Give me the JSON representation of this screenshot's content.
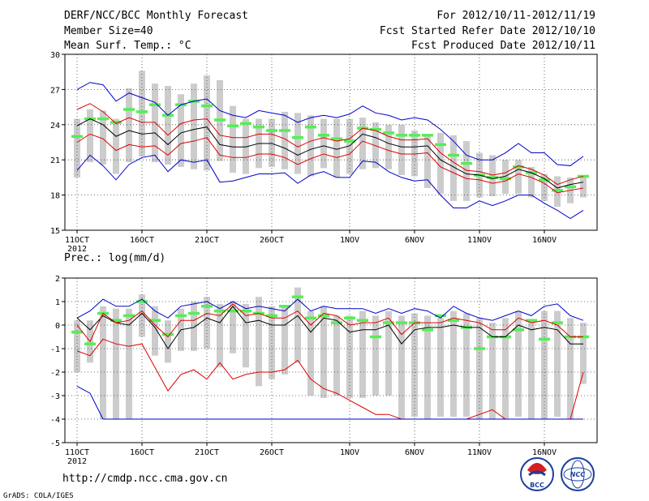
{
  "header": {
    "title": "DERF/NCC/BCC Monthly Forecast",
    "member_size": "Member Size=40",
    "variable1": "Mean Surf. Temp.: °C",
    "for_range": "For 2012/10/11-2012/11/19",
    "started": "Fcst Started Refer Date 2012/10/10",
    "produced": "Fcst Produced Date 2012/10/11"
  },
  "footer": {
    "url": "http://cmdp.ncc.cma.gov.cn",
    "grads": "GrADS: COLA/IGES",
    "logo1_text": "BCC",
    "logo2_text": "NCC"
  },
  "colors": {
    "mean": "#000000",
    "spread": "#dd0000",
    "envelope": "#0000cc",
    "member": "#55ee55",
    "box": "#cccccc"
  },
  "chart_data": [
    {
      "type": "line",
      "title": "Mean Surf. Temp.: °C",
      "ylim": [
        15,
        30
      ],
      "yticks": [
        "15",
        "18",
        "21",
        "24",
        "27",
        "30"
      ],
      "xlabels": [
        "11OCT",
        "16OCT",
        "21OCT",
        "26OCT",
        "1NOV",
        "6NOV",
        "11NOV",
        "16NOV"
      ],
      "year_label": "2012",
      "days": 40,
      "series": [
        {
          "name": "ensemble mean",
          "color": "#000000",
          "values": [
            23.9,
            24.5,
            24.0,
            23.0,
            23.5,
            23.2,
            23.3,
            22.3,
            23.3,
            23.6,
            23.8,
            22.3,
            22.1,
            22.1,
            22.4,
            22.4,
            22.0,
            21.4,
            21.9,
            22.2,
            21.9,
            22.2,
            23.2,
            22.9,
            22.4,
            22.1,
            22.1,
            22.2,
            21.0,
            20.4,
            19.8,
            19.7,
            19.4,
            19.6,
            20.2,
            19.9,
            19.4,
            18.6,
            18.9,
            19.1
          ]
        },
        {
          "name": "mean + spread",
          "color": "#dd0000",
          "values": [
            25.3,
            25.8,
            25.1,
            24.1,
            24.6,
            24.2,
            24.2,
            23.1,
            24.1,
            24.4,
            24.5,
            23.1,
            22.9,
            22.9,
            23.2,
            23.2,
            22.8,
            22.1,
            22.6,
            22.9,
            22.6,
            22.8,
            23.7,
            23.5,
            23.0,
            22.7,
            22.7,
            22.8,
            21.6,
            20.8,
            20.1,
            20.0,
            19.7,
            19.9,
            20.5,
            20.2,
            19.7,
            18.9,
            19.3,
            19.6
          ]
        },
        {
          "name": "mean - spread",
          "color": "#dd0000",
          "values": [
            22.5,
            23.2,
            22.8,
            21.8,
            22.3,
            22.1,
            22.2,
            21.4,
            22.4,
            22.6,
            22.9,
            21.4,
            21.2,
            21.2,
            21.5,
            21.5,
            21.2,
            20.6,
            21.1,
            21.5,
            21.2,
            21.5,
            22.6,
            22.2,
            21.8,
            21.5,
            21.5,
            21.6,
            20.4,
            19.9,
            19.4,
            19.3,
            19.0,
            19.2,
            19.8,
            19.5,
            19.0,
            18.2,
            18.4,
            18.6
          ]
        },
        {
          "name": "max member",
          "color": "#0000cc",
          "values": [
            27.0,
            27.6,
            27.4,
            26.0,
            26.7,
            26.3,
            25.9,
            24.8,
            25.7,
            26.0,
            26.2,
            25.2,
            24.8,
            24.6,
            25.2,
            25.0,
            24.8,
            24.2,
            24.6,
            24.8,
            24.6,
            24.9,
            25.6,
            25.0,
            24.8,
            24.4,
            24.6,
            24.4,
            23.6,
            22.6,
            21.4,
            21.0,
            21.0,
            21.6,
            22.4,
            21.6,
            21.6,
            20.6,
            20.5,
            21.3
          ]
        },
        {
          "name": "min member",
          "color": "#0000cc",
          "values": [
            20.1,
            21.4,
            20.5,
            19.3,
            20.6,
            21.2,
            21.4,
            20.0,
            21.0,
            20.8,
            21.0,
            19.1,
            19.2,
            19.5,
            19.8,
            19.8,
            19.9,
            19.0,
            19.7,
            20.0,
            19.5,
            19.5,
            20.9,
            20.8,
            20.0,
            19.5,
            19.2,
            19.3,
            18.0,
            16.9,
            16.9,
            17.5,
            17.1,
            17.5,
            18.0,
            18.0,
            17.3,
            16.7,
            16.0,
            16.7
          ]
        }
      ],
      "box_top": [
        24.5,
        25.3,
        25.2,
        24.5,
        27.1,
        28.6,
        27.5,
        27.3,
        26.6,
        27.5,
        28.2,
        27.8,
        25.6,
        24.5,
        24.5,
        24.5,
        25.1,
        25.0,
        24.8,
        24.5,
        24.5,
        24.5,
        24.6,
        24.2,
        24.0,
        24.0,
        23.5,
        23.0,
        23.3,
        23.1,
        22.6,
        21.6,
        21.4,
        21.0,
        21.0,
        20.4,
        19.8,
        19.6,
        19.5,
        19.5
      ],
      "box_bottom": [
        19.5,
        20.8,
        20.6,
        19.8,
        20.8,
        21.3,
        20.8,
        20.6,
        20.4,
        20.2,
        20.1,
        20.9,
        19.9,
        19.8,
        20.3,
        20.4,
        20.2,
        19.8,
        19.6,
        20.3,
        19.5,
        19.8,
        20.2,
        20.3,
        20.2,
        19.7,
        19.6,
        18.6,
        18.1,
        17.5,
        17.5,
        17.8,
        17.9,
        18.1,
        18.1,
        17.8,
        17.5,
        17.0,
        17.3,
        17.8
      ],
      "member_marks": [
        23.0,
        24.5,
        24.5,
        24.2,
        25.3,
        25.1,
        25.7,
        24.8,
        25.7,
        26.0,
        25.6,
        24.4,
        23.9,
        24.1,
        23.8,
        23.5,
        23.5,
        22.9,
        23.8,
        23.1,
        22.8,
        22.6,
        23.7,
        23.6,
        23.3,
        23.1,
        23.1,
        23.1,
        22.3,
        21.4,
        20.7,
        19.7,
        19.5,
        19.4,
        20.4,
        19.9,
        19.3,
        18.4,
        18.7,
        19.6
      ]
    },
    {
      "type": "line",
      "title": "Prec.: log(mm/d)",
      "ylim": [
        -5,
        2
      ],
      "yticks": [
        "-5",
        "-4",
        "-3",
        "-2",
        "-1",
        "0",
        "1",
        "2"
      ],
      "xlabels": [
        "11OCT",
        "16OCT",
        "21OCT",
        "26OCT",
        "1NOV",
        "6NOV",
        "11NOV",
        "16NOV"
      ],
      "year_label": "2012",
      "days": 40,
      "series": [
        {
          "name": "ensemble mean",
          "color": "#000000",
          "values": [
            0.3,
            -0.2,
            0.4,
            0.1,
            0.0,
            0.5,
            -0.1,
            -1.0,
            -0.2,
            -0.1,
            0.3,
            0.1,
            0.8,
            0.1,
            0.2,
            0.0,
            0.0,
            0.4,
            -0.3,
            0.3,
            0.2,
            -0.3,
            -0.2,
            -0.2,
            0.0,
            -0.8,
            -0.2,
            -0.1,
            -0.1,
            0.0,
            -0.1,
            -0.1,
            -0.5,
            -0.5,
            0.0,
            -0.2,
            -0.1,
            -0.2,
            -0.8,
            -0.8
          ]
        },
        {
          "name": "mean + spread",
          "color": "#dd0000",
          "values": [
            0.0,
            -0.7,
            0.5,
            0.1,
            0.2,
            0.6,
            0.0,
            -0.5,
            0.2,
            0.2,
            0.5,
            0.4,
            0.9,
            0.4,
            0.5,
            0.3,
            0.3,
            0.6,
            0.0,
            0.5,
            0.4,
            0.0,
            0.1,
            0.1,
            0.3,
            -0.4,
            0.1,
            0.1,
            0.1,
            0.3,
            0.2,
            0.1,
            -0.2,
            -0.2,
            0.3,
            0.1,
            0.2,
            0.0,
            -0.5,
            -0.5
          ]
        },
        {
          "name": "mean - spread",
          "color": "#dd0000",
          "values": [
            -1.1,
            -1.3,
            -0.6,
            -0.8,
            -0.9,
            -0.8,
            -1.8,
            -2.8,
            -2.1,
            -1.9,
            -2.3,
            -1.6,
            -2.3,
            -2.1,
            -2.0,
            -2.0,
            -1.9,
            -1.5,
            -2.3,
            -2.7,
            -2.9,
            -3.2,
            -3.5,
            -3.8,
            -3.8,
            -4.0,
            -4.0,
            -4.0,
            -4.0,
            -4.0,
            -4.0,
            -3.8,
            -3.6,
            -4.0,
            -4.0,
            -4.0,
            -4.0,
            -4.0,
            -4.0,
            -2.0
          ]
        },
        {
          "name": "max member",
          "color": "#0000cc",
          "values": [
            0.3,
            0.6,
            1.1,
            0.8,
            0.8,
            1.1,
            0.6,
            0.3,
            0.8,
            0.9,
            1.0,
            0.7,
            1.0,
            0.7,
            0.8,
            0.7,
            0.6,
            1.1,
            0.6,
            0.8,
            0.7,
            0.7,
            0.7,
            0.5,
            0.7,
            0.5,
            0.7,
            0.6,
            0.3,
            0.8,
            0.5,
            0.3,
            0.2,
            0.4,
            0.6,
            0.4,
            0.8,
            0.9,
            0.4,
            0.2
          ]
        },
        {
          "name": "min member",
          "color": "#0000cc",
          "values": [
            -2.6,
            -2.9,
            -4.0,
            -4.0,
            -4.0,
            -4.0,
            -4.0,
            -4.0,
            -4.0,
            -4.0,
            -4.0,
            -4.0,
            -4.0,
            -4.0,
            -4.0,
            -4.0,
            -4.0,
            -4.0,
            -4.0,
            -4.0,
            -4.0,
            -4.0,
            -4.0,
            -4.0,
            -4.0,
            -4.0,
            -4.0,
            -4.0,
            -4.0,
            -4.0,
            -4.0,
            -4.0,
            -4.0,
            -4.0,
            -4.0,
            -4.0,
            -4.0,
            -4.0,
            -4.0,
            -4.0
          ]
        }
      ],
      "box_top": [
        0.2,
        0.2,
        0.8,
        0.7,
        0.7,
        1.3,
        0.8,
        0.2,
        0.7,
        1.0,
        1.2,
        0.9,
        1.0,
        0.9,
        1.2,
        0.8,
        0.8,
        1.6,
        0.6,
        0.8,
        0.4,
        0.4,
        0.6,
        0.4,
        0.6,
        0.4,
        0.5,
        0.4,
        0.3,
        0.6,
        0.5,
        0.3,
        0.1,
        0.3,
        0.6,
        0.2,
        0.6,
        0.6,
        0.3,
        0.1
      ],
      "box_bottom": [
        -2.0,
        -1.6,
        -4.0,
        -4.0,
        -4.0,
        -0.5,
        -1.3,
        -1.6,
        -1.1,
        -1.1,
        -1.0,
        -1.8,
        -1.2,
        -1.8,
        -2.6,
        -2.3,
        -2.1,
        -1.6,
        -3.0,
        -3.1,
        -3.0,
        -3.1,
        -3.1,
        -3.0,
        -3.0,
        -4.0,
        -3.9,
        -4.0,
        -3.9,
        -3.9,
        -3.9,
        -4.0,
        -4.0,
        -4.0,
        -3.9,
        -4.0,
        -4.0,
        -3.9,
        -4.0,
        -2.5
      ],
      "member_marks": [
        -0.3,
        -0.8,
        0.5,
        0.2,
        0.4,
        1.0,
        0.2,
        -0.4,
        0.4,
        0.5,
        0.8,
        0.6,
        0.6,
        0.6,
        0.5,
        0.4,
        0.8,
        1.2,
        0.3,
        0.4,
        0.1,
        0.3,
        0.2,
        -0.5,
        0.1,
        0.1,
        0.1,
        -0.2,
        0.4,
        0.2,
        -0.1,
        -1.0,
        -0.5,
        -0.5,
        -0.2,
        0.2,
        -0.6,
        0.1,
        -0.5,
        -0.5
      ]
    }
  ]
}
